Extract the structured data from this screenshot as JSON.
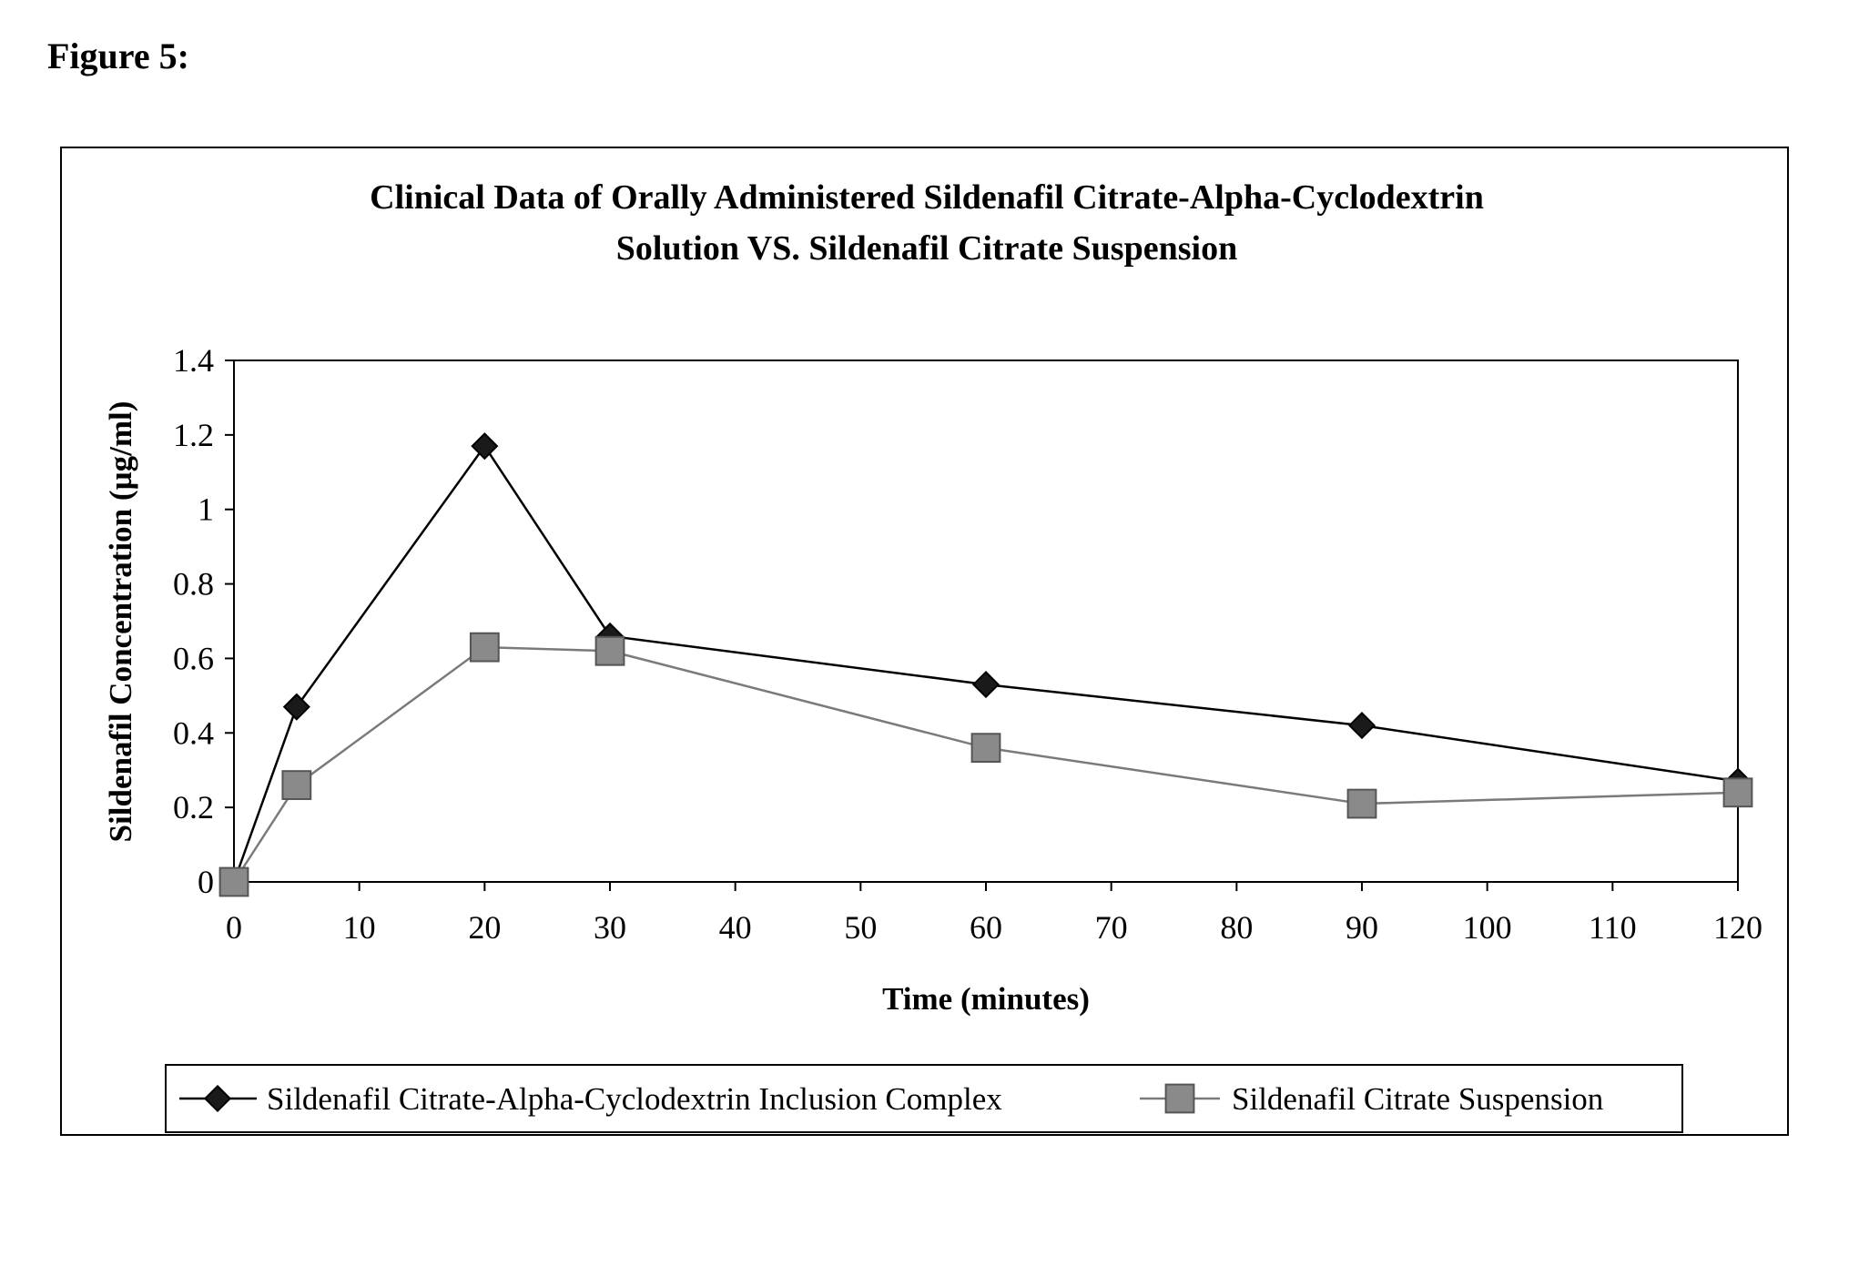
{
  "figure_label": "Figure 5:",
  "chart_data": {
    "type": "line",
    "title": [
      "Clinical Data of Orally Administered Sildenafil Citrate-Alpha-Cyclodextrin",
      "Solution VS. Sildenafil Citrate Suspension"
    ],
    "xlabel": "Time (minutes)",
    "ylabel": "Sildenafil Concentration (µg/ml)",
    "xlim": [
      0,
      120
    ],
    "ylim": [
      0,
      1.4
    ],
    "xticks": [
      0,
      10,
      20,
      30,
      40,
      50,
      60,
      70,
      80,
      90,
      100,
      110,
      120
    ],
    "yticks": [
      0,
      0.2,
      0.4,
      0.6,
      0.8,
      1,
      1.2,
      1.4
    ],
    "legend_position": "bottom",
    "grid": false,
    "series": [
      {
        "name": "Sildenafil Citrate-Alpha-Cyclodextrin Inclusion Complex",
        "marker": "diamond",
        "color": "#000000",
        "x": [
          0,
          5,
          20,
          30,
          60,
          90,
          120
        ],
        "y": [
          0,
          0.47,
          1.17,
          0.66,
          0.53,
          0.42,
          0.27
        ]
      },
      {
        "name": "Sildenafil Citrate Suspension",
        "marker": "square",
        "color": "#7a7a7a",
        "x": [
          0,
          5,
          20,
          30,
          60,
          90,
          120
        ],
        "y": [
          0,
          0.26,
          0.63,
          0.62,
          0.36,
          0.21,
          0.24
        ]
      }
    ]
  }
}
